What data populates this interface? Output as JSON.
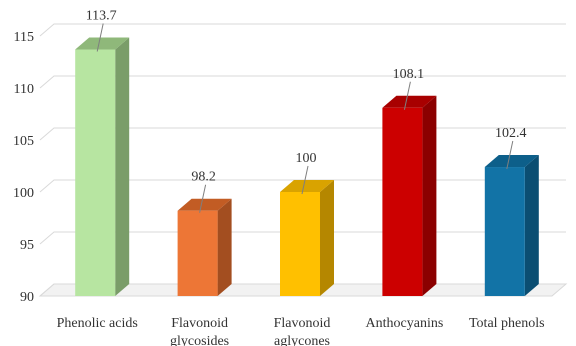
{
  "chart_data": {
    "type": "bar",
    "style": "3d-column",
    "categories": [
      [
        "Phenolic acids"
      ],
      [
        "Flavonoid",
        "glycosides"
      ],
      [
        "Flavonoid",
        "aglycones"
      ],
      [
        "Anthocyanins"
      ],
      [
        "Total phenols"
      ]
    ],
    "values": [
      113.7,
      98.2,
      100,
      108.1,
      102.4
    ],
    "value_labels": [
      "113.7",
      "98.2",
      "100",
      "108.1",
      "102.4"
    ],
    "bar_colors": [
      "#b7e5a1",
      "#ed7636",
      "#ffc000",
      "#cc0000",
      "#1273a6"
    ],
    "bar_side_colors": [
      "#7a9d69",
      "#a34e20",
      "#b58700",
      "#8b0000",
      "#0b4e72"
    ],
    "bar_top_colors": [
      "#8fb87a",
      "#c25c24",
      "#d9a300",
      "#a80000",
      "#0d5f8a"
    ],
    "ylim": [
      90,
      115
    ],
    "yticks": [
      "90",
      "95",
      "100",
      "105",
      "110",
      "115"
    ],
    "grid": true,
    "grid_color": "#d9d9d9",
    "title": "",
    "xlabel": "",
    "ylabel": ""
  }
}
